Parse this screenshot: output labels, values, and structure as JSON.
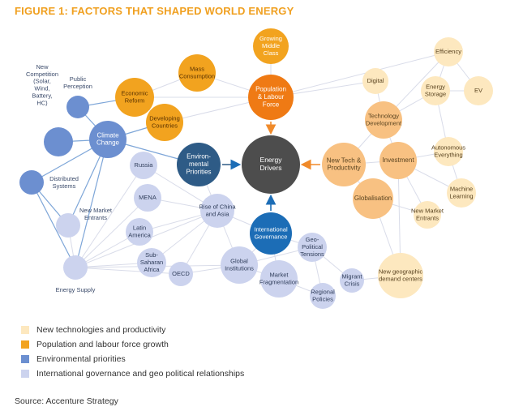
{
  "title": "FIGURE 1: FACTORS THAT SHAPED WORLD ENERGY",
  "source": "Source: Accenture Strategy",
  "colors": {
    "tech": "#fde8bf",
    "tech_strong": "#f8c182",
    "population": "#f2a31f",
    "population_strong": "#ef7a14",
    "environment": "#6c8fd0",
    "environment_strong": "#2e5b86",
    "governance": "#ccd3ee",
    "governance_strong": "#1c6db6",
    "center": "#4d4d4d",
    "edge": "#d9dce9",
    "edge_blue": "#7ea6d8",
    "arrow": "#f08a2a"
  },
  "legend": [
    {
      "label": "New technologies and productivity",
      "color": "#fde8bf"
    },
    {
      "label": "Population and labour force growth",
      "color": "#f2a31f"
    },
    {
      "label": "Environmental priorities",
      "color": "#6c8fd0"
    },
    {
      "label": "International governance and geo political relationships",
      "color": "#ccd3ee"
    }
  ],
  "nodes": [
    {
      "id": "energy-drivers",
      "label": "Energy\nDrivers"
    },
    {
      "id": "population",
      "label": "Population\n& Labour\nForce"
    },
    {
      "id": "growing-middle-class",
      "label": "Growing\nMiddle\nClass"
    },
    {
      "id": "mass-consumption",
      "label": "Mass\nConsumption"
    },
    {
      "id": "economic-reform",
      "label": "Economic\nReform"
    },
    {
      "id": "developing-countries",
      "label": "Developing\nCountries"
    },
    {
      "id": "environmental-priorities",
      "label": "Environ-\nmental\nPriorities"
    },
    {
      "id": "climate-change",
      "label": "Climate\nChange"
    },
    {
      "id": "public-perception",
      "label": "Public\nPerception"
    },
    {
      "id": "new-competition",
      "label": "New\nCompetition\n(Solar,\nWind,\nBattery,\nHC)"
    },
    {
      "id": "distributed-systems",
      "label": "Distributed\nSystems"
    },
    {
      "id": "new-market-entrants-left",
      "label": "New Market\nEntrants"
    },
    {
      "id": "energy-supply",
      "label": "Energy Supply"
    },
    {
      "id": "russia",
      "label": "Russia"
    },
    {
      "id": "mena",
      "label": "MENA"
    },
    {
      "id": "latin-america",
      "label": "Latin\nAmerica"
    },
    {
      "id": "sub-saharan-africa",
      "label": "Sub-\nSaharan\nAfrica"
    },
    {
      "id": "oecd",
      "label": "OECD"
    },
    {
      "id": "rise-of-china",
      "label": "Rise of China\nand Asia"
    },
    {
      "id": "global-institutions",
      "label": "Global\nInstitutions"
    },
    {
      "id": "international-governance",
      "label": "International\nGovernance"
    },
    {
      "id": "market-fragmentation",
      "label": "Market\nFragmentation"
    },
    {
      "id": "geo-political-tensions",
      "label": "Geo-\nPolitical\nTensions"
    },
    {
      "id": "regional-policies",
      "label": "Regional\nPolicies"
    },
    {
      "id": "migrant-crisis",
      "label": "Migrant\nCrisis"
    },
    {
      "id": "new-geographic-demand",
      "label": "New geographic\ndemand centers"
    },
    {
      "id": "new-tech-productivity",
      "label": "New Tech &\nProductivity"
    },
    {
      "id": "technology-development",
      "label": "Technology\nDevelopment"
    },
    {
      "id": "investment",
      "label": "Investment"
    },
    {
      "id": "globalisation",
      "label": "Globalisation"
    },
    {
      "id": "digital",
      "label": "Digital"
    },
    {
      "id": "efficiency",
      "label": "Efficiency"
    },
    {
      "id": "energy-storage",
      "label": "Energy\nStorage"
    },
    {
      "id": "ev",
      "label": "EV"
    },
    {
      "id": "autonomous-everything",
      "label": "Autonomous\nEverything"
    },
    {
      "id": "machine-learning",
      "label": "Machine\nLearning"
    },
    {
      "id": "new-market-entrants-right",
      "label": "New Market\nEntrants"
    }
  ]
}
